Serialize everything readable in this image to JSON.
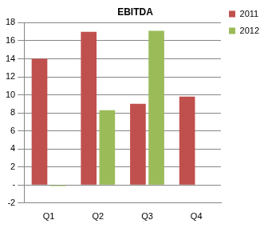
{
  "chart_data": {
    "type": "bar",
    "title": "EBITDA",
    "categories": [
      "Q1",
      "Q2",
      "Q3",
      "Q4"
    ],
    "series": [
      {
        "name": "2011",
        "color": "#c0504d",
        "values": [
          14,
          17,
          9,
          9.8
        ]
      },
      {
        "name": "2012",
        "color": "#9bbb59",
        "values": [
          -0.1,
          8.3,
          17.1,
          null
        ]
      }
    ],
    "ylim": [
      -2,
      18
    ],
    "yticks": [
      -2,
      {
        "value": 0,
        "label": "-"
      },
      2,
      4,
      6,
      8,
      10,
      12,
      14,
      16,
      18
    ],
    "grid": true,
    "legend": "right"
  }
}
